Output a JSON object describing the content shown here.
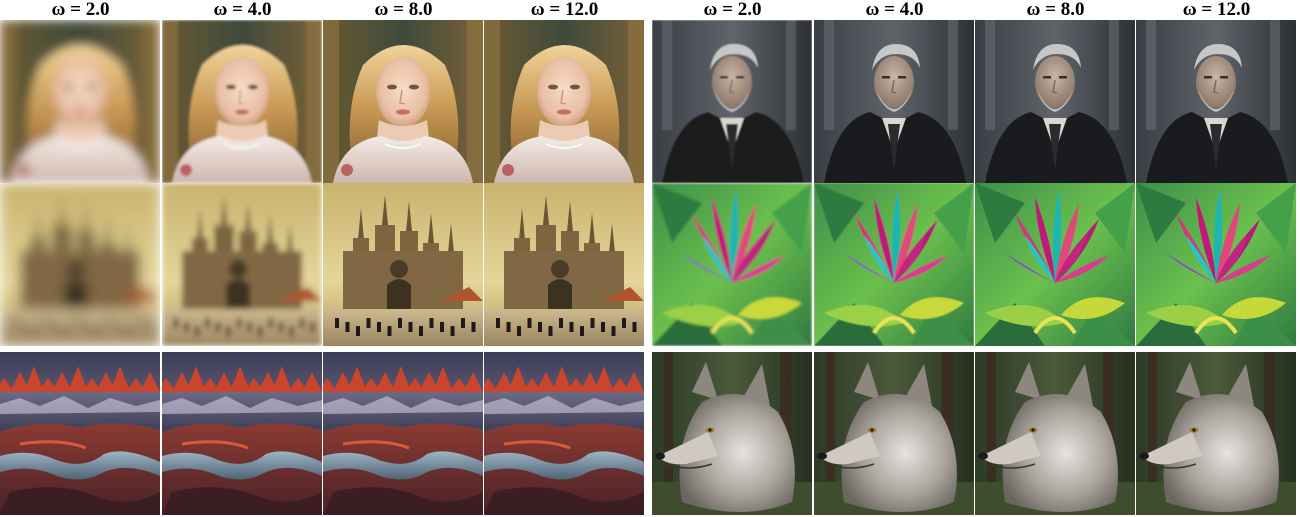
{
  "panels": [
    {
      "id": "left",
      "headers": [
        "ω = 2.0",
        "ω = 4.0",
        "ω = 8.0",
        "ω = 12.0"
      ],
      "rows": [
        {
          "subject": "blonde-woman-portrait",
          "blur_levels": [
            5,
            1.2,
            0,
            0
          ]
        },
        {
          "subject": "gothic-cathedral-painting",
          "blur_levels": [
            6,
            3,
            0,
            0
          ]
        },
        {
          "subject": "red-peaks-valley-landscape",
          "blur_levels": [
            0,
            0,
            0,
            0
          ]
        }
      ]
    },
    {
      "id": "right",
      "headers": [
        "ω = 2.0",
        "ω = 4.0",
        "ω = 8.0",
        "ω = 12.0"
      ],
      "rows": [
        {
          "subject": "old-man-black-robe-portrait",
          "blur_levels": [
            0.8,
            0,
            0,
            0
          ]
        },
        {
          "subject": "pink-green-flower-leaves",
          "blur_levels": [
            1.2,
            0.6,
            0,
            0
          ]
        },
        {
          "subject": "gray-wolf-forest",
          "blur_levels": [
            0,
            0,
            0,
            0
          ]
        }
      ]
    }
  ]
}
